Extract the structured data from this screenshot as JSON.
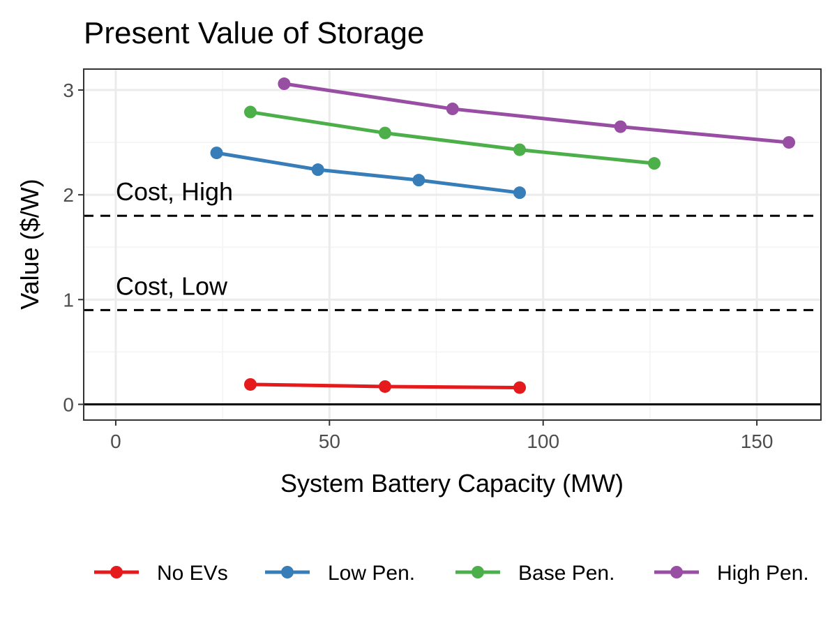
{
  "chart_data": {
    "type": "line",
    "title": "Present Value of Storage",
    "xlabel": "System Battery Capacity (MW)",
    "ylabel": "Value ($/W)",
    "xlim": [
      -7.5,
      165
    ],
    "ylim": [
      -0.15,
      3.2
    ],
    "xticks": [
      0,
      50,
      100,
      150
    ],
    "yticks": [
      0,
      1,
      2,
      3
    ],
    "grid": true,
    "legend_position": "bottom",
    "series": [
      {
        "name": "No EVs",
        "color": "#E41A1C",
        "x": [
          31.5,
          63,
          94.5
        ],
        "y": [
          0.19,
          0.17,
          0.16
        ]
      },
      {
        "name": "Low Pen.",
        "color": "#377EB8",
        "x": [
          23.6,
          47.3,
          70.9,
          94.5
        ],
        "y": [
          2.4,
          2.24,
          2.14,
          2.02
        ]
      },
      {
        "name": "Base Pen.",
        "color": "#4DAF4A",
        "x": [
          31.5,
          63,
          94.5,
          126
        ],
        "y": [
          2.79,
          2.59,
          2.43,
          2.3
        ]
      },
      {
        "name": "High Pen.",
        "color": "#984EA3",
        "x": [
          39.4,
          78.8,
          118.1,
          157.5
        ],
        "y": [
          3.06,
          2.82,
          2.65,
          2.5
        ]
      }
    ],
    "reference_lines": [
      {
        "label": "Cost, High",
        "y": 1.8,
        "style": "dashed",
        "color": "#000000"
      },
      {
        "label": "Cost, Low",
        "y": 0.9,
        "style": "dashed",
        "color": "#000000"
      },
      {
        "label": "",
        "y": 0,
        "style": "solid",
        "color": "#000000"
      }
    ]
  }
}
